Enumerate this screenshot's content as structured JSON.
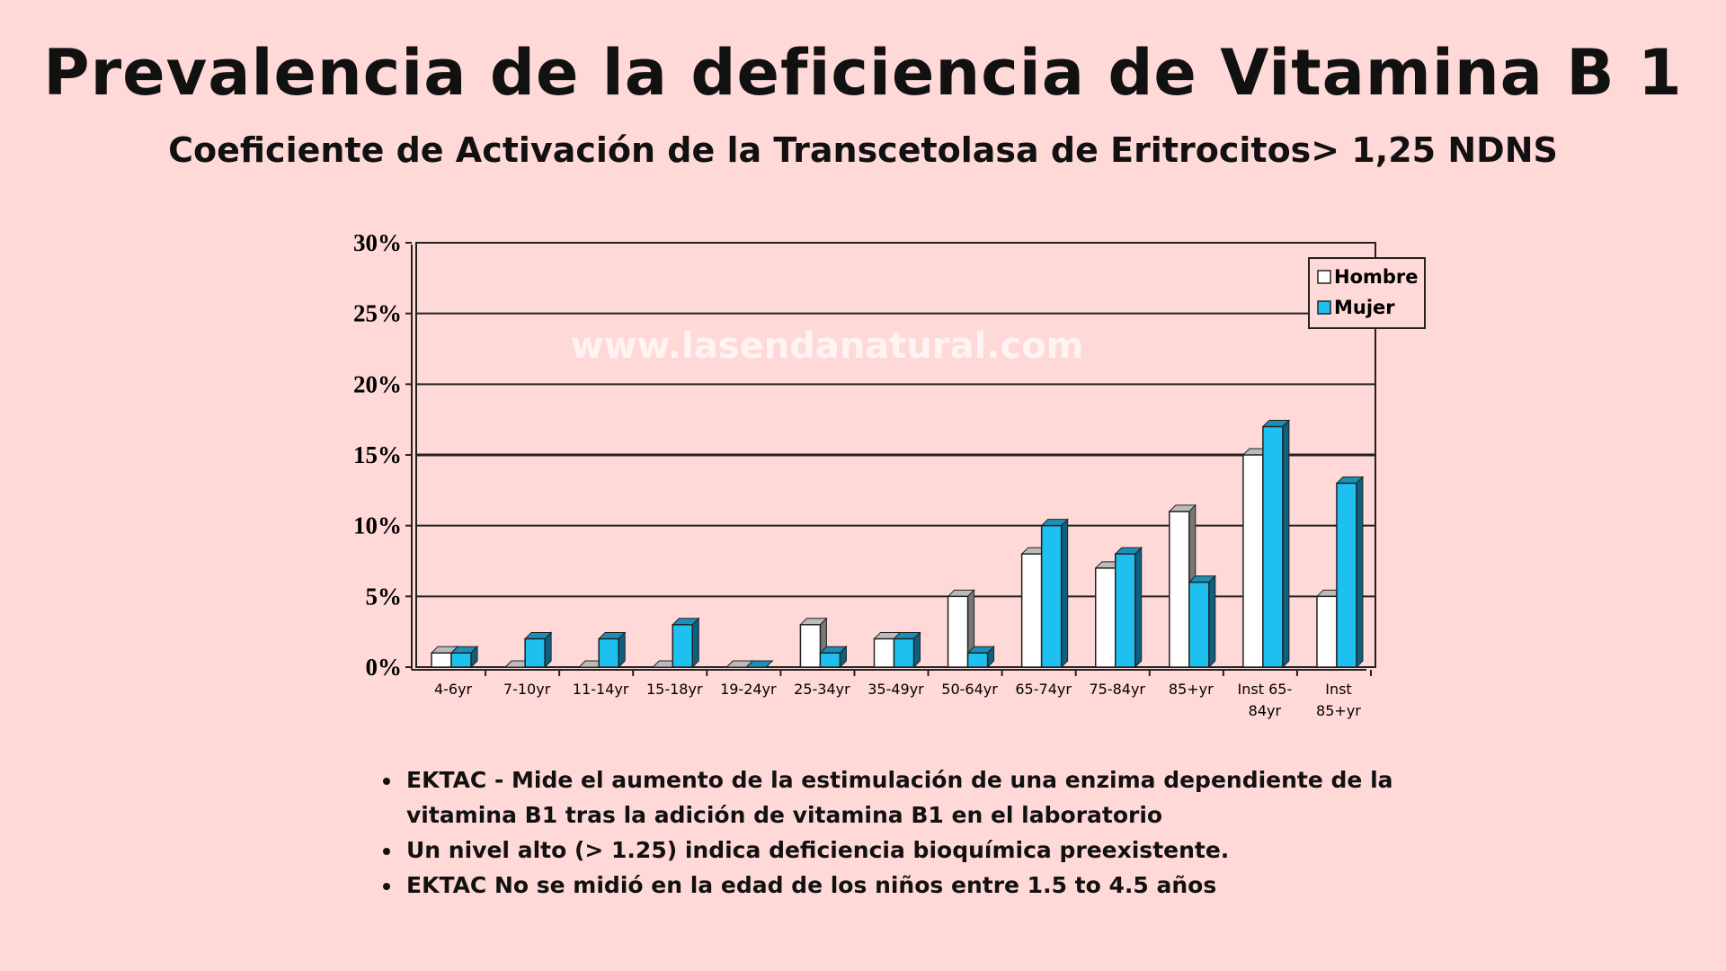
{
  "title": "Prevalencia de la deficiencia de Vitamina B 1",
  "subtitle": "Coeficiente de Activación de la Transcetolasa de Eritrocitos> 1,25 NDNS",
  "watermark": "www.lasendanatural.com",
  "chart_data": {
    "type": "bar",
    "categories": [
      "4-6yr",
      "7-10yr",
      "11-14yr",
      "15-18yr",
      "19-24yr",
      "25-34yr",
      "35-49yr",
      "50-64yr",
      "65-74yr",
      "75-84yr",
      "85+yr",
      "Inst 65-84yr",
      "Inst 85+yr"
    ],
    "category_lines": [
      [
        "4-6yr"
      ],
      [
        "7-10yr"
      ],
      [
        "11-14yr"
      ],
      [
        "15-18yr"
      ],
      [
        "19-24yr"
      ],
      [
        "25-34yr"
      ],
      [
        "35-49yr"
      ],
      [
        "50-64yr"
      ],
      [
        "65-74yr"
      ],
      [
        "75-84yr"
      ],
      [
        "85+yr"
      ],
      [
        "Inst 65-",
        "84yr"
      ],
      [
        "Inst",
        "85+yr"
      ]
    ],
    "series": [
      {
        "name": "Hombre",
        "color": "#ffffff",
        "values": [
          1,
          0,
          0,
          0,
          0,
          3,
          2,
          5,
          8,
          7,
          11,
          15,
          5
        ]
      },
      {
        "name": "Mujer",
        "color": "#1ec0f0",
        "values": [
          1,
          2,
          2,
          3,
          0,
          1,
          2,
          1,
          10,
          8,
          6,
          17,
          13
        ]
      }
    ],
    "yticks": [
      "0%",
      "5%",
      "10%",
      "15%",
      "20%",
      "25%",
      "30%"
    ],
    "ylim": [
      0,
      30
    ],
    "grid": true,
    "legend": "top-right",
    "xlabel": "",
    "ylabel": ""
  },
  "bullets": [
    "EKTAC - Mide el aumento de la estimulación de una enzima dependiente de la vitamina B1 tras la adición de vitamina B1 en el laboratorio",
    "Un nivel alto (> 1.25) indica deficiencia bioquímica preexistente.",
    "EKTAC No se midió en la edad de los niños entre 1.5 to 4.5 años"
  ]
}
